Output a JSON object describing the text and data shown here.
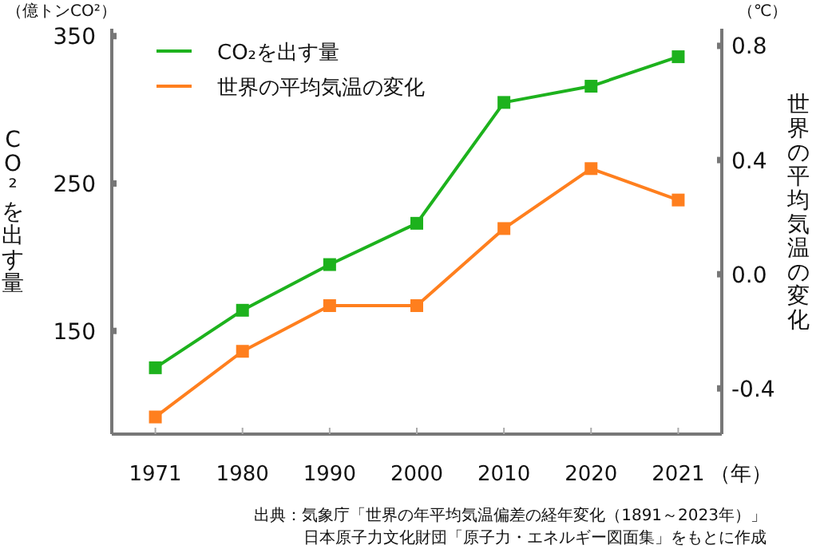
{
  "chart_data": {
    "type": "line",
    "categories": [
      "1971",
      "1980",
      "1990",
      "2000",
      "2010",
      "2020",
      "2021"
    ],
    "series": [
      {
        "name": "CO₂を出す量",
        "color": "#1db21d",
        "values": [
          125,
          164,
          195,
          223,
          305,
          316,
          336
        ]
      },
      {
        "name": "世界の平均気温の変化",
        "color": "#ff7f1e",
        "axis": "y2",
        "values": [
          -0.5,
          -0.27,
          -0.11,
          -0.11,
          0.16,
          0.37,
          0.26
        ]
      }
    ],
    "ylim": [
      80,
      355
    ],
    "yticks": [
      150,
      250,
      350
    ],
    "y2lim": [
      -0.56,
      0.86
    ],
    "y2ticks": [
      {
        "value": -0.4,
        "label": "-0.4"
      },
      {
        "value": 0,
        "label": "0.0"
      },
      {
        "value": 0.4,
        "label": "0.4"
      },
      {
        "value": 0.8,
        "label": "0.8"
      }
    ],
    "ylabel": "CO²を出す量",
    "y2label": "世界の平均気温の変化",
    "xlabel": "（年）",
    "marker": "square",
    "line_style": "solid",
    "grid": false,
    "legend": "top left",
    "annotations": [
      "（億トンCO²）",
      "（℃）",
      "出典：気象庁「世界の年平均気温偏差の経年変化（1891～2023年）」",
      "日本原子力文化財団「原子力・エネルギー図面集」をもとに作成"
    ]
  }
}
